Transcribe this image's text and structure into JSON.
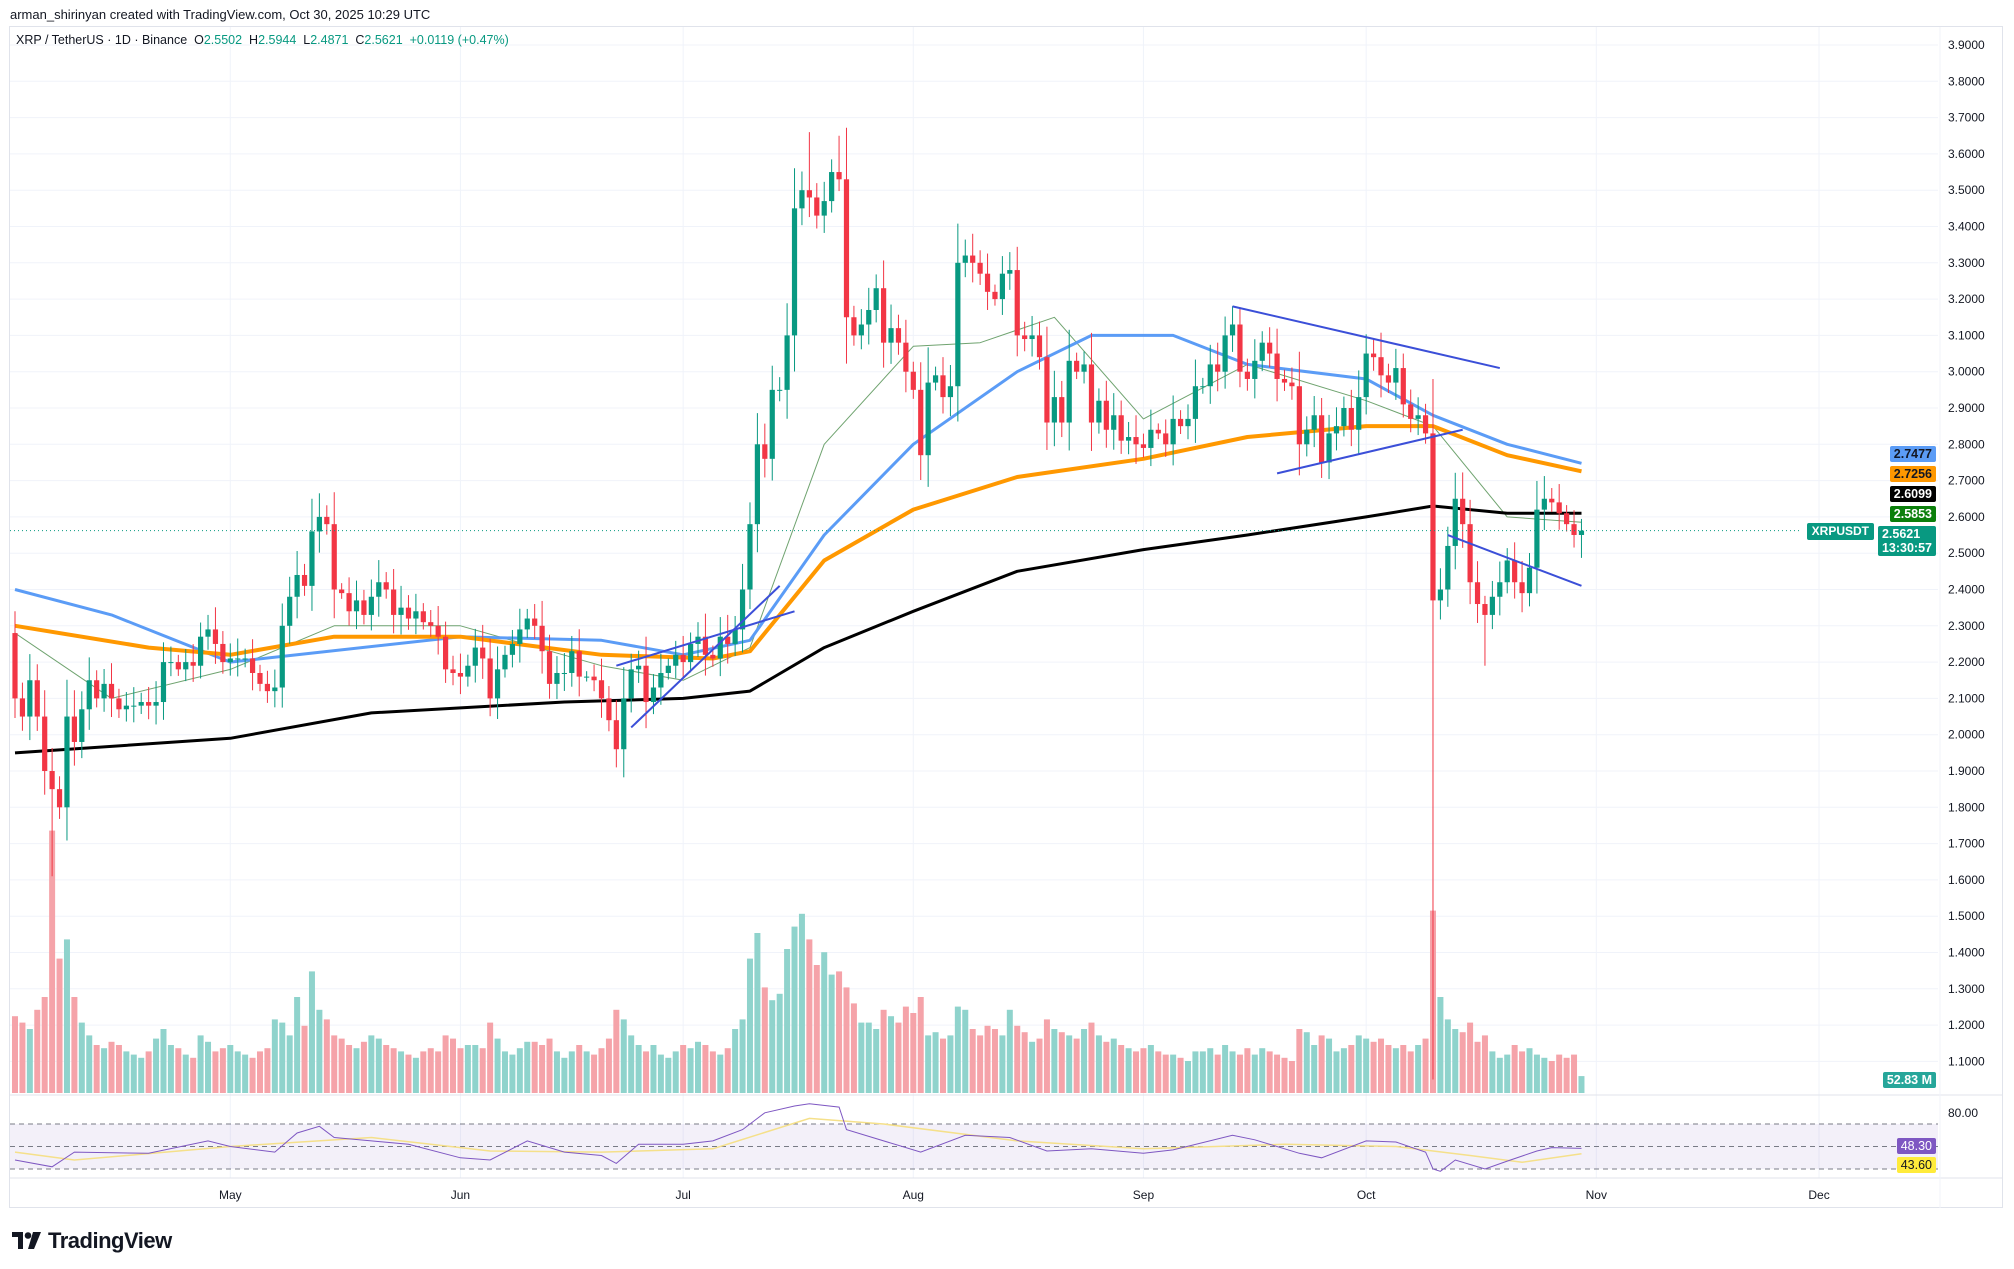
{
  "credit": "arman_shirinyan created with TradingView.com, Oct 30, 2025 10:29 UTC",
  "legend": {
    "symbol": "XRP / TetherUS · 1D · Binance",
    "o_label": "O",
    "o": "2.5502",
    "h_label": "H",
    "h": "2.5944",
    "l_label": "L",
    "l": "2.4871",
    "c_label": "C",
    "c": "2.5621",
    "change": "+0.0119 (+0.47%)"
  },
  "badges": {
    "ma50": {
      "value": "2.7477",
      "color": "#5b9cf6"
    },
    "ma100": {
      "value": "2.7256",
      "color": "#ff9800"
    },
    "ma200": {
      "value": "2.6099",
      "color": "#000000"
    },
    "ma20": {
      "value": "2.5853",
      "color": "#0b7f0b"
    },
    "symbol": "XRPUSDT",
    "last_price": "2.5621",
    "countdown": "13:30:57",
    "volume": "52.83 M",
    "rsi": {
      "value": "48.30",
      "color": "#7e57c2"
    },
    "rsi_ma": {
      "value": "43.60",
      "color": "#ffeb3b"
    }
  },
  "logo_text": "TradingView",
  "colors": {
    "up": "#089981",
    "down": "#f23645",
    "vol_up": "#8fd3cc",
    "vol_down": "#f5a3a9",
    "trendline": "#3b4fd8",
    "rsi_line": "#7e57c2",
    "rsi_ma": "#f5e08a"
  },
  "chart_data": {
    "type": "candlestick",
    "start_date": "2025-04-02",
    "ylim": [
      1.1,
      3.9
    ],
    "y_ticks": [
      "3.9000",
      "3.8000",
      "3.7000",
      "3.6000",
      "3.5000",
      "3.4000",
      "3.3000",
      "3.2000",
      "3.1000",
      "3.0000",
      "2.9000",
      "2.8000",
      "2.7000",
      "2.6000",
      "2.5000",
      "2.4000",
      "2.3000",
      "2.2000",
      "2.1000",
      "2.0000",
      "1.9000",
      "1.8000",
      "1.7000",
      "1.6000",
      "1.5000",
      "1.4000",
      "1.3000",
      "1.2000",
      "1.1000"
    ],
    "x_ticks": [
      {
        "label": "May",
        "date": "2025-05-01"
      },
      {
        "label": "Jun",
        "date": "2025-06-01"
      },
      {
        "label": "Jul",
        "date": "2025-07-01"
      },
      {
        "label": "Aug",
        "date": "2025-08-01"
      },
      {
        "label": "Sep",
        "date": "2025-09-01"
      },
      {
        "label": "Oct",
        "date": "2025-10-01"
      },
      {
        "label": "Nov",
        "date": "2025-11-01"
      },
      {
        "label": "Dec",
        "date": "2025-12-01"
      }
    ],
    "first_open": 2.28,
    "closes": {
      "2025-04": [
        2.1,
        2.05,
        2.15,
        2.05,
        1.9,
        1.85,
        1.8,
        2.05,
        1.98,
        2.07,
        2.15,
        2.1,
        2.14,
        2.1,
        2.07,
        2.08,
        2.08,
        2.09,
        2.08,
        2.09,
        2.2,
        2.2,
        2.18,
        2.2,
        2.19,
        2.27,
        2.29,
        2.25,
        2.2
      ],
      "2025-05": [
        2.21,
        2.21,
        2.21,
        2.17,
        2.14,
        2.12,
        2.13,
        2.3,
        2.38,
        2.44,
        2.41,
        2.56,
        2.6,
        2.58,
        2.4,
        2.39,
        2.34,
        2.37,
        2.33,
        2.38,
        2.42,
        2.4,
        2.33,
        2.35,
        2.32,
        2.34,
        2.31,
        2.3,
        2.27,
        2.18,
        2.17
      ],
      "2025-06": [
        2.16,
        2.19,
        2.24,
        2.21,
        2.1,
        2.18,
        2.22,
        2.25,
        2.29,
        2.32,
        2.3,
        2.23,
        2.14,
        2.17,
        2.17,
        2.23,
        2.16,
        2.16,
        2.15,
        2.1,
        2.04,
        1.96,
        2.1,
        2.18,
        2.19,
        2.09,
        2.13,
        2.17,
        2.19,
        2.22
      ],
      "2025-07": [
        2.2,
        2.25,
        2.27,
        2.22,
        2.21,
        2.27,
        2.25,
        2.29,
        2.4,
        2.58,
        2.8,
        2.76,
        2.95,
        2.95,
        3.1,
        3.45,
        3.5,
        3.48,
        3.43,
        3.47,
        3.55,
        3.53,
        3.15,
        3.1,
        3.13,
        3.17,
        3.23,
        3.08,
        3.12,
        3.08,
        3.0
      ],
      "2025-08": [
        2.95,
        2.77,
        2.97,
        2.99,
        2.93,
        2.96,
        3.3,
        3.32,
        3.3,
        3.27,
        3.22,
        3.2,
        3.27,
        3.28,
        3.1,
        3.09,
        3.1,
        3.04,
        2.86,
        2.93,
        2.86,
        3.03,
        3.0,
        3.02,
        2.86,
        2.92,
        2.84,
        2.88,
        2.81,
        2.82,
        2.8
      ],
      "2025-09": [
        2.79,
        2.84,
        2.83,
        2.8,
        2.87,
        2.85,
        2.87,
        2.96,
        2.96,
        3.02,
        3.0,
        3.1,
        3.13,
        3.0,
        2.98,
        3.03,
        3.08,
        3.05,
        2.98,
        2.97,
        2.96,
        2.8,
        2.84,
        2.88,
        2.75,
        2.83,
        2.85,
        2.9,
        2.84,
        2.93
      ],
      "2025-10": [
        3.05,
        3.04,
        2.99,
        2.97,
        3.01,
        2.91,
        2.87,
        2.88,
        2.83,
        2.37,
        2.4,
        2.52,
        2.65,
        2.58,
        2.42,
        2.36,
        2.33,
        2.38,
        2.42,
        2.48,
        2.42,
        2.39,
        2.46,
        2.62,
        2.65,
        2.64,
        2.61,
        2.58,
        2.5502,
        2.5621
      ]
    },
    "extreme_wicks": [
      {
        "date": "2025-04-07",
        "low": 1.61
      },
      {
        "date": "2025-05-12",
        "high": 2.65
      },
      {
        "date": "2025-06-22",
        "low": 1.91
      },
      {
        "date": "2025-07-18",
        "high": 3.66
      },
      {
        "date": "2025-07-22",
        "high": 3.65
      },
      {
        "date": "2025-10-10",
        "low": 1.05
      },
      {
        "date": "2025-10-17",
        "low": 2.19
      },
      {
        "date": "2025-10-30",
        "high": 2.5944,
        "low": 2.4871
      }
    ],
    "volume_millions": {
      "2025-04": [
        240,
        220,
        200,
        260,
        300,
        820,
        420,
        480,
        300,
        220,
        180,
        150,
        140,
        160,
        150,
        130,
        120,
        110,
        130,
        170,
        200,
        150,
        140,
        120,
        110,
        180,
        160,
        130,
        140
      ],
      "2025-05": [
        150,
        130,
        120,
        110,
        130,
        140,
        230,
        220,
        180,
        300,
        210,
        380,
        260,
        230,
        180,
        170,
        150,
        140,
        160,
        180,
        170,
        150,
        140,
        130,
        120,
        110,
        130,
        140,
        130,
        180,
        170
      ],
      "2025-06": [
        140,
        150,
        150,
        140,
        220,
        170,
        130,
        120,
        140,
        160,
        160,
        150,
        170,
        130,
        110,
        130,
        150,
        130,
        120,
        140,
        170,
        260,
        230,
        180,
        150,
        130,
        150,
        120,
        110,
        130
      ],
      "2025-07": [
        150,
        140,
        160,
        150,
        130,
        120,
        140,
        200,
        230,
        420,
        500,
        330,
        290,
        310,
        450,
        520,
        560,
        480,
        400,
        440,
        370,
        380,
        330,
        280,
        220,
        220,
        200,
        260,
        240,
        220,
        270
      ],
      "2025-08": [
        250,
        300,
        180,
        190,
        170,
        180,
        270,
        260,
        200,
        180,
        210,
        200,
        180,
        260,
        210,
        190,
        160,
        170,
        230,
        200,
        190,
        180,
        170,
        200,
        220,
        180,
        160,
        170,
        150,
        140,
        130
      ],
      "2025-09": [
        140,
        150,
        130,
        120,
        120,
        110,
        100,
        130,
        130,
        140,
        120,
        150,
        130,
        120,
        140,
        120,
        140,
        130,
        120,
        110,
        100,
        200,
        190,
        150,
        180,
        170,
        130,
        140,
        150,
        180
      ],
      "2025-10": [
        170,
        160,
        170,
        150,
        140,
        150,
        130,
        150,
        170,
        570,
        300,
        230,
        200,
        190,
        220,
        160,
        180,
        130,
        110,
        120,
        150,
        130,
        140,
        120,
        110,
        100,
        120,
        110,
        120,
        52.83
      ]
    },
    "moving_averages": [
      {
        "key": "ma20",
        "color": "#6fa36f",
        "width": 1,
        "points": [
          [
            "2025-04-02",
            2.28
          ],
          [
            "2025-04-15",
            2.1
          ],
          [
            "2025-05-01",
            2.18
          ],
          [
            "2025-05-15",
            2.3
          ],
          [
            "2025-06-01",
            2.3
          ],
          [
            "2025-06-20",
            2.19
          ],
          [
            "2025-07-01",
            2.15
          ],
          [
            "2025-07-10",
            2.24
          ],
          [
            "2025-07-20",
            2.8
          ],
          [
            "2025-08-01",
            3.07
          ],
          [
            "2025-08-10",
            3.08
          ],
          [
            "2025-08-20",
            3.15
          ],
          [
            "2025-09-01",
            2.87
          ],
          [
            "2025-09-15",
            3.02
          ],
          [
            "2025-10-01",
            2.92
          ],
          [
            "2025-10-10",
            2.85
          ],
          [
            "2025-10-20",
            2.6
          ],
          [
            "2025-10-30",
            2.5853
          ]
        ]
      },
      {
        "key": "ma50",
        "color": "#5b9cf6",
        "width": 3,
        "points": [
          [
            "2025-04-02",
            2.4
          ],
          [
            "2025-04-15",
            2.33
          ],
          [
            "2025-05-01",
            2.2
          ],
          [
            "2025-05-10",
            2.22
          ],
          [
            "2025-06-01",
            2.27
          ],
          [
            "2025-06-20",
            2.26
          ],
          [
            "2025-07-01",
            2.22
          ],
          [
            "2025-07-10",
            2.26
          ],
          [
            "2025-07-20",
            2.55
          ],
          [
            "2025-08-01",
            2.8
          ],
          [
            "2025-08-15",
            3.0
          ],
          [
            "2025-08-25",
            3.1
          ],
          [
            "2025-09-05",
            3.1
          ],
          [
            "2025-09-15",
            3.02
          ],
          [
            "2025-10-01",
            2.98
          ],
          [
            "2025-10-10",
            2.88
          ],
          [
            "2025-10-20",
            2.8
          ],
          [
            "2025-10-30",
            2.7477
          ]
        ]
      },
      {
        "key": "ma100",
        "color": "#ff9800",
        "width": 4,
        "points": [
          [
            "2025-04-02",
            2.3
          ],
          [
            "2025-04-20",
            2.24
          ],
          [
            "2025-05-01",
            2.22
          ],
          [
            "2025-05-15",
            2.27
          ],
          [
            "2025-06-01",
            2.27
          ],
          [
            "2025-06-20",
            2.22
          ],
          [
            "2025-07-05",
            2.21
          ],
          [
            "2025-07-10",
            2.23
          ],
          [
            "2025-07-20",
            2.48
          ],
          [
            "2025-08-01",
            2.62
          ],
          [
            "2025-08-15",
            2.71
          ],
          [
            "2025-09-01",
            2.76
          ],
          [
            "2025-09-15",
            2.82
          ],
          [
            "2025-10-01",
            2.85
          ],
          [
            "2025-10-10",
            2.85
          ],
          [
            "2025-10-20",
            2.77
          ],
          [
            "2025-10-30",
            2.7256
          ]
        ]
      },
      {
        "key": "ma200",
        "color": "#000000",
        "width": 3,
        "points": [
          [
            "2025-04-02",
            1.95
          ],
          [
            "2025-05-01",
            1.99
          ],
          [
            "2025-05-20",
            2.06
          ],
          [
            "2025-06-15",
            2.09
          ],
          [
            "2025-07-01",
            2.1
          ],
          [
            "2025-07-10",
            2.12
          ],
          [
            "2025-07-20",
            2.24
          ],
          [
            "2025-08-01",
            2.34
          ],
          [
            "2025-08-15",
            2.45
          ],
          [
            "2025-09-01",
            2.51
          ],
          [
            "2025-09-15",
            2.55
          ],
          [
            "2025-10-01",
            2.6
          ],
          [
            "2025-10-10",
            2.63
          ],
          [
            "2025-10-20",
            2.61
          ],
          [
            "2025-10-30",
            2.6099
          ]
        ]
      }
    ],
    "trendlines": [
      [
        [
          "2025-06-24",
          2.02
        ],
        [
          "2025-07-14",
          2.41
        ]
      ],
      [
        [
          "2025-06-22",
          2.19
        ],
        [
          "2025-07-16",
          2.34
        ]
      ],
      [
        [
          "2025-09-13",
          3.18
        ],
        [
          "2025-10-19",
          3.01
        ]
      ],
      [
        [
          "2025-09-19",
          2.72
        ],
        [
          "2025-10-14",
          2.84
        ]
      ],
      [
        [
          "2025-10-12",
          2.55
        ],
        [
          "2025-10-30",
          2.41
        ]
      ]
    ],
    "rsi": {
      "levels": [
        70,
        50,
        30
      ],
      "tick": "80.00",
      "line": [
        [
          "2025-04-02",
          38
        ],
        [
          "2025-04-07",
          32
        ],
        [
          "2025-04-10",
          45
        ],
        [
          "2025-04-20",
          44
        ],
        [
          "2025-04-28",
          55
        ],
        [
          "2025-05-01",
          50
        ],
        [
          "2025-05-07",
          45
        ],
        [
          "2025-05-10",
          62
        ],
        [
          "2025-05-13",
          68
        ],
        [
          "2025-05-15",
          58
        ],
        [
          "2025-05-20",
          55
        ],
        [
          "2025-05-25",
          52
        ],
        [
          "2025-06-01",
          40
        ],
        [
          "2025-06-05",
          38
        ],
        [
          "2025-06-10",
          55
        ],
        [
          "2025-06-15",
          45
        ],
        [
          "2025-06-20",
          42
        ],
        [
          "2025-06-22",
          35
        ],
        [
          "2025-06-25",
          52
        ],
        [
          "2025-07-01",
          52
        ],
        [
          "2025-07-05",
          55
        ],
        [
          "2025-07-09",
          65
        ],
        [
          "2025-07-12",
          80
        ],
        [
          "2025-07-16",
          86
        ],
        [
          "2025-07-18",
          88
        ],
        [
          "2025-07-22",
          85
        ],
        [
          "2025-07-23",
          65
        ],
        [
          "2025-08-02",
          45
        ],
        [
          "2025-08-08",
          60
        ],
        [
          "2025-08-14",
          58
        ],
        [
          "2025-08-19",
          46
        ],
        [
          "2025-08-25",
          48
        ],
        [
          "2025-09-01",
          44
        ],
        [
          "2025-09-05",
          47
        ],
        [
          "2025-09-13",
          60
        ],
        [
          "2025-09-16",
          56
        ],
        [
          "2025-09-22",
          44
        ],
        [
          "2025-09-25",
          40
        ],
        [
          "2025-10-01",
          55
        ],
        [
          "2025-10-05",
          54
        ],
        [
          "2025-10-09",
          45
        ],
        [
          "2025-10-10",
          30
        ],
        [
          "2025-10-11",
          28
        ],
        [
          "2025-10-13",
          38
        ],
        [
          "2025-10-17",
          30
        ],
        [
          "2025-10-20",
          37
        ],
        [
          "2025-10-24",
          46
        ],
        [
          "2025-10-26",
          49
        ],
        [
          "2025-10-30",
          48.3
        ]
      ],
      "ma": [
        [
          "2025-04-02",
          45
        ],
        [
          "2025-04-10",
          38
        ],
        [
          "2025-05-01",
          50
        ],
        [
          "2025-05-20",
          58
        ],
        [
          "2025-06-05",
          46
        ],
        [
          "2025-06-20",
          45
        ],
        [
          "2025-07-05",
          48
        ],
        [
          "2025-07-18",
          75
        ],
        [
          "2025-07-28",
          70
        ],
        [
          "2025-08-15",
          55
        ],
        [
          "2025-09-01",
          48
        ],
        [
          "2025-09-20",
          52
        ],
        [
          "2025-10-05",
          50
        ],
        [
          "2025-10-15",
          42
        ],
        [
          "2025-10-22",
          36
        ],
        [
          "2025-10-30",
          43.6
        ]
      ]
    }
  }
}
